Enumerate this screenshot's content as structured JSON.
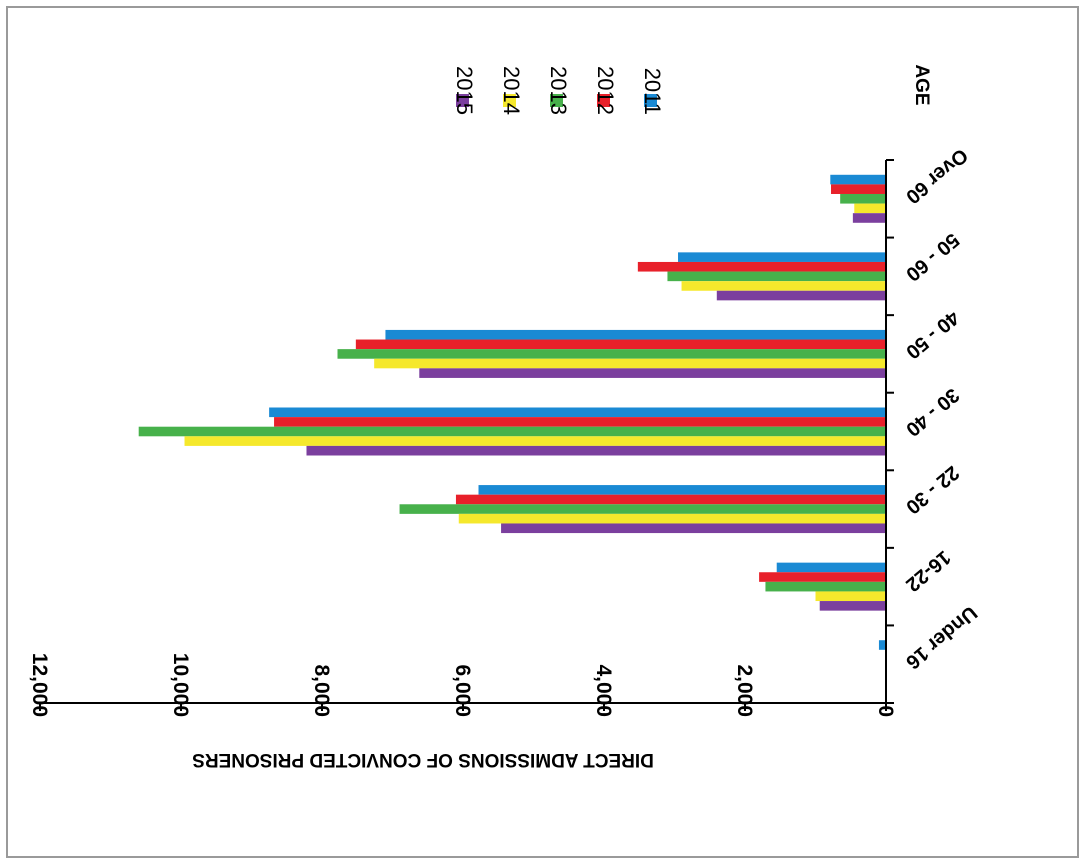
{
  "chart_data": {
    "type": "bar",
    "orientation": "horizontal",
    "rotation": "180deg",
    "xlabel": "AGE",
    "ylabel": "DIRECT ADMISSIONS OF CONVICTED PRISONERS",
    "ylim": [
      0,
      12000
    ],
    "yticks": [
      0,
      2000,
      4000,
      6000,
      8000,
      10000,
      12000
    ],
    "ytick_labels": [
      "0",
      "2,000",
      "4,000",
      "6,000",
      "8,000",
      "10,000",
      "12,000"
    ],
    "grid": false,
    "legend_position": "top",
    "categories": [
      "Under 16",
      "16-22",
      "22 - 30",
      "30 - 40",
      "40 - 50",
      "50 - 60",
      "Over 60"
    ],
    "series": [
      {
        "name": "2011",
        "color": "#1a8ad4",
        "values": [
          100,
          1550,
          5780,
          8750,
          7100,
          2950,
          790
        ]
      },
      {
        "name": "2012",
        "color": "#e8202a",
        "values": [
          0,
          1800,
          6100,
          8680,
          7520,
          3520,
          780
        ]
      },
      {
        "name": "2013",
        "color": "#47b14b",
        "values": [
          0,
          1710,
          6900,
          10600,
          7780,
          3100,
          650
        ]
      },
      {
        "name": "2014",
        "color": "#f5e82c",
        "values": [
          0,
          1000,
          6060,
          9950,
          7260,
          2900,
          450
        ]
      },
      {
        "name": "2015",
        "color": "#7b3f9e",
        "values": [
          0,
          940,
          5460,
          8220,
          6620,
          2400,
          470
        ]
      }
    ]
  }
}
